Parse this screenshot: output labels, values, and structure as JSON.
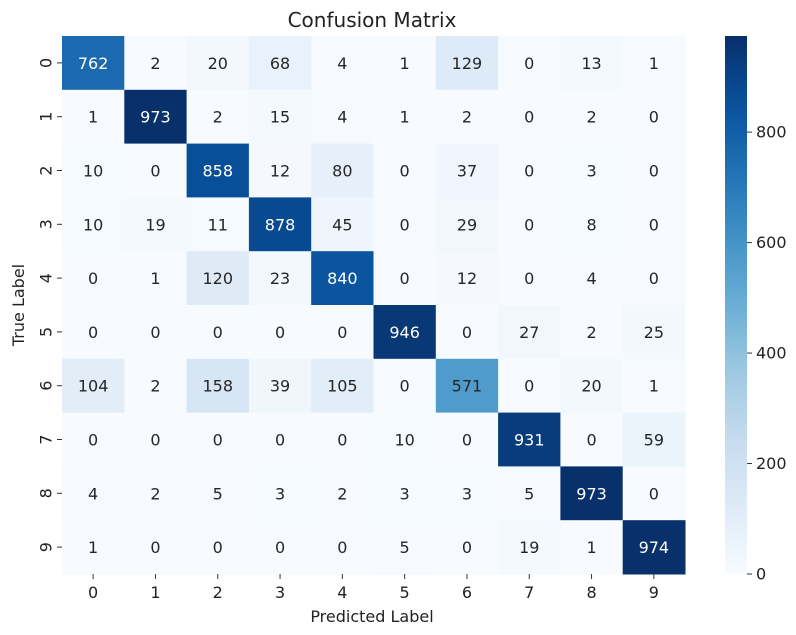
{
  "chart_data": {
    "type": "heatmap",
    "title": "Confusion Matrix",
    "xlabel": "Predicted Label",
    "ylabel": "True Label",
    "x_categories": [
      "0",
      "1",
      "2",
      "3",
      "4",
      "5",
      "6",
      "7",
      "8",
      "9"
    ],
    "y_categories": [
      "0",
      "1",
      "2",
      "3",
      "4",
      "5",
      "6",
      "7",
      "8",
      "9"
    ],
    "matrix": [
      [
        762,
        2,
        20,
        68,
        4,
        1,
        129,
        0,
        13,
        1
      ],
      [
        1,
        973,
        2,
        15,
        4,
        1,
        2,
        0,
        2,
        0
      ],
      [
        10,
        0,
        858,
        12,
        80,
        0,
        37,
        0,
        3,
        0
      ],
      [
        10,
        19,
        11,
        878,
        45,
        0,
        29,
        0,
        8,
        0
      ],
      [
        0,
        1,
        120,
        23,
        840,
        0,
        12,
        0,
        4,
        0
      ],
      [
        0,
        0,
        0,
        0,
        0,
        946,
        0,
        27,
        2,
        25
      ],
      [
        104,
        2,
        158,
        39,
        105,
        0,
        571,
        0,
        20,
        1
      ],
      [
        0,
        0,
        0,
        0,
        0,
        10,
        0,
        931,
        0,
        59
      ],
      [
        4,
        2,
        5,
        3,
        2,
        3,
        3,
        5,
        973,
        0
      ],
      [
        1,
        0,
        0,
        0,
        0,
        5,
        0,
        19,
        1,
        974
      ]
    ],
    "colorbar": {
      "colormap": "Blues",
      "vmin": 0,
      "vmax": 974,
      "ticks": [
        0,
        200,
        400,
        600,
        800
      ]
    }
  }
}
